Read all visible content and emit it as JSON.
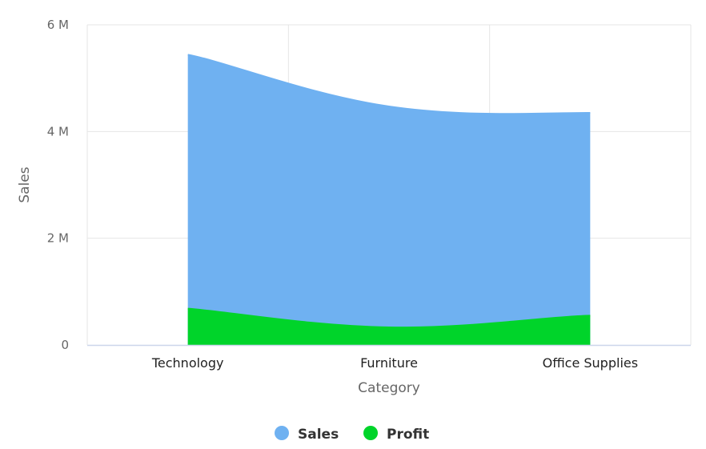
{
  "chart_data": {
    "type": "area",
    "categories": [
      "Technology",
      "Furniture",
      "Office Supplies"
    ],
    "series": [
      {
        "name": "Sales",
        "values": [
          5440000,
          4470000,
          4350000
        ],
        "color": "#6fb1f1"
      },
      {
        "name": "Profit",
        "values": [
          680000,
          330000,
          550000
        ],
        "color": "#00d42a"
      }
    ],
    "xlabel": "Category",
    "ylabel": "Sales",
    "ylim": [
      0,
      6000000
    ],
    "yticks": [
      {
        "value": 0,
        "label": "0"
      },
      {
        "value": 2000000,
        "label": "2 M"
      },
      {
        "value": 4000000,
        "label": "4 M"
      },
      {
        "value": 6000000,
        "label": "6 M"
      }
    ],
    "grid": true,
    "legend": "bottom-center",
    "gridColor": "#e6e6e6",
    "axisColor": "#ccd6eb"
  }
}
